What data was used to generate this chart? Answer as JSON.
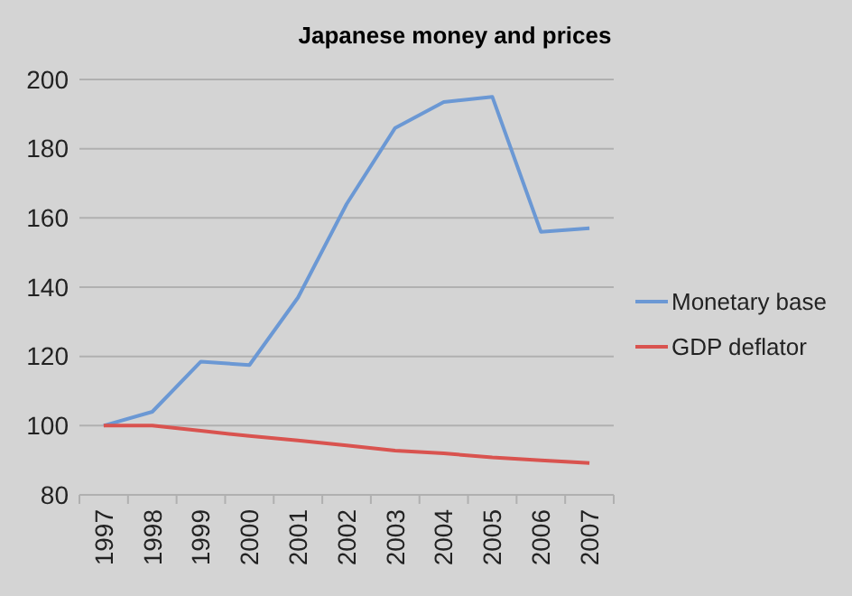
{
  "chart_data": {
    "type": "line",
    "title": "Japanese money and prices",
    "categories": [
      "1997",
      "1998",
      "1999",
      "2000",
      "2001",
      "2002",
      "2003",
      "2004",
      "2005",
      "2006",
      "2007"
    ],
    "series": [
      {
        "name": "Monetary base",
        "color": "#6b98d4",
        "values": [
          100,
          104,
          118.5,
          117.5,
          137,
          164,
          186,
          193.5,
          195,
          156,
          157
        ]
      },
      {
        "name": "GDP deflator",
        "color": "#d9534f",
        "values": [
          100,
          100,
          98.5,
          97,
          95.7,
          94.3,
          92.8,
          92,
          90.8,
          90,
          89.2
        ]
      }
    ],
    "ylim": [
      80,
      200
    ],
    "yticks": [
      80,
      100,
      120,
      140,
      160,
      180,
      200
    ],
    "grid": "y",
    "legend": "right"
  }
}
